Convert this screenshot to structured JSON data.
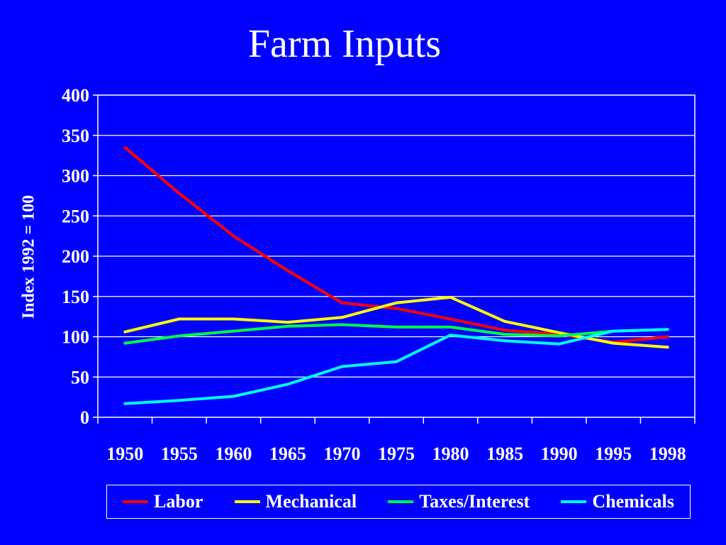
{
  "slide": {
    "title": "Farm Inputs"
  },
  "chart_data": {
    "type": "line",
    "title": "Farm Inputs",
    "xlabel": "",
    "ylabel": "Index 1992 = 100",
    "categories": [
      "1950",
      "1955",
      "1960",
      "1965",
      "1970",
      "1975",
      "1980",
      "1985",
      "1990",
      "1995",
      "1998"
    ],
    "ylim": [
      0,
      400
    ],
    "yticks": [
      0,
      50,
      100,
      150,
      200,
      250,
      300,
      350,
      400
    ],
    "grid": true,
    "legend_position": "bottom",
    "series": [
      {
        "name": "Labor",
        "color": "#FF0000",
        "values": [
          335,
          278,
          225,
          182,
          142,
          135,
          122,
          108,
          103,
          93,
          100
        ]
      },
      {
        "name": "Mechanical",
        "color": "#FFFF00",
        "values": [
          106,
          122,
          122,
          118,
          124,
          142,
          149,
          119,
          105,
          92,
          87
        ]
      },
      {
        "name": "Taxes/Interest",
        "color": "#00FF40",
        "values": [
          92,
          101,
          107,
          113,
          115,
          112,
          112,
          103,
          101,
          107,
          109
        ]
      },
      {
        "name": "Chemicals",
        "color": "#00FFFF",
        "values": [
          17,
          21,
          26,
          41,
          63,
          69,
          102,
          95,
          91,
          107,
          109
        ]
      }
    ]
  },
  "colors": {
    "background": "#0000FF",
    "text": "#FFFFFF",
    "gridlines": "#FFFFFF"
  }
}
